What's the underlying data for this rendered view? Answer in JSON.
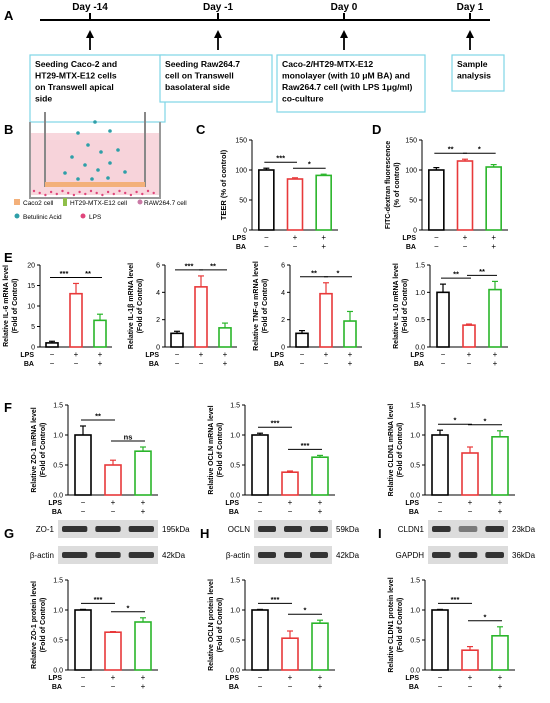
{
  "panel_letters": [
    "A",
    "B",
    "C",
    "D",
    "E",
    "F",
    "G",
    "H",
    "I"
  ],
  "timeline": {
    "days": [
      "Day -14",
      "Day -1",
      "Day 0",
      "Day 1"
    ],
    "boxes": [
      [
        "Seeding Caco-2 and",
        "HT29-MTX-E12 cells",
        "on Transwell apical",
        "side"
      ],
      [
        "Seeding Raw264.7",
        "cell on Transwell",
        "basolateral side"
      ],
      [
        "Caco-2/HT29-MTX-E12",
        "monolayer (with 10 μM BA) and",
        "Raw264.7 cell (with LPS 1μg/ml)",
        "co-culture"
      ],
      [
        "Sample",
        "analysis"
      ]
    ]
  },
  "schematic_legend": {
    "caco2": "Caco2 cell",
    "ht29": "HT29-MTX-E12 cell",
    "raw": "RAW264.7 cell",
    "ba": "Betulinic Acid",
    "lps": "LPS"
  },
  "treatment_rows": {
    "lps_label": "LPS",
    "ba_label": "BA",
    "lps": [
      "−",
      "+",
      "+"
    ],
    "ba": [
      "−",
      "−",
      "+"
    ]
  },
  "colors": {
    "control": "#000000",
    "lps": "#e8393a",
    "ba": "#2ab52a",
    "timeline_box": "#7fd6e6",
    "schematic_pink": "#f5c6cf",
    "dots_teal": "#2e9fa8",
    "dots_pink": "#e0457b"
  },
  "blots": {
    "G": {
      "bands": [
        {
          "name": "ZO-1",
          "size": "195kDa"
        },
        {
          "name": "β-actin",
          "size": "42kDa"
        }
      ]
    },
    "H": {
      "bands": [
        {
          "name": "OCLN",
          "size": "59kDa"
        },
        {
          "name": "β-actin",
          "size": "42kDa"
        }
      ]
    },
    "I": {
      "bands": [
        {
          "name": "CLDN1",
          "size": "23kDa"
        },
        {
          "name": "GAPDH",
          "size": "36kDa"
        }
      ]
    }
  },
  "chart_data": [
    {
      "id": "C",
      "type": "bar",
      "ylabel": "TEER (% of control)",
      "ylim": [
        0,
        150
      ],
      "yticks": [
        0,
        50,
        100,
        150
      ],
      "values": [
        100,
        85,
        91
      ],
      "errors": [
        3,
        2,
        2
      ],
      "sig": [
        {
          "from": 0,
          "to": 1,
          "label": "***"
        },
        {
          "from": 1,
          "to": 2,
          "label": "*"
        }
      ]
    },
    {
      "id": "D",
      "type": "bar",
      "ylabel": "FITC-dextran fluorescence (% of control)",
      "ylim": [
        0,
        150
      ],
      "yticks": [
        0,
        50,
        100,
        150
      ],
      "values": [
        100,
        115,
        105
      ],
      "errors": [
        4,
        3,
        4
      ],
      "sig": [
        {
          "from": 0,
          "to": 1,
          "label": "**"
        },
        {
          "from": 1,
          "to": 2,
          "label": "*"
        }
      ]
    },
    {
      "id": "E1",
      "type": "bar",
      "ylabel": "Relative IL-6 mRNA level (Fold of Control)",
      "ylim": [
        0,
        20
      ],
      "yticks": [
        0,
        5,
        10,
        15,
        20
      ],
      "values": [
        1,
        13,
        6.5
      ],
      "errors": [
        0.4,
        2.5,
        1.5
      ],
      "sig": [
        {
          "from": 0,
          "to": 1,
          "label": "***"
        },
        {
          "from": 1,
          "to": 2,
          "label": "**"
        }
      ]
    },
    {
      "id": "E2",
      "type": "bar",
      "ylabel": "Relative IL-1β mRNA level (Fold of Control)",
      "ylim": [
        0,
        6
      ],
      "yticks": [
        0,
        2,
        4,
        6
      ],
      "values": [
        1,
        4.4,
        1.4
      ],
      "errors": [
        0.15,
        0.8,
        0.35
      ],
      "sig": [
        {
          "from": 0,
          "to": 1,
          "label": "***"
        },
        {
          "from": 1,
          "to": 2,
          "label": "**"
        }
      ]
    },
    {
      "id": "E3",
      "type": "bar",
      "ylabel": "Relative TNF-α mRNA level (Fold of Control)",
      "ylim": [
        0,
        6
      ],
      "yticks": [
        0,
        2,
        4,
        6
      ],
      "values": [
        1,
        3.9,
        1.9
      ],
      "errors": [
        0.2,
        0.8,
        0.7
      ],
      "sig": [
        {
          "from": 0,
          "to": 1,
          "label": "**"
        },
        {
          "from": 1,
          "to": 2,
          "label": "*"
        }
      ]
    },
    {
      "id": "E4",
      "type": "bar",
      "ylabel": "Relative IL-10 mRNA level (Fold of Control)",
      "ylim": [
        0,
        1.5
      ],
      "yticks": [
        0.0,
        0.5,
        1.0,
        1.5
      ],
      "values": [
        1,
        0.4,
        1.05
      ],
      "errors": [
        0.15,
        0.02,
        0.15
      ],
      "sig": [
        {
          "from": 0,
          "to": 1,
          "label": "**"
        },
        {
          "from": 1,
          "to": 2,
          "label": "**"
        }
      ]
    },
    {
      "id": "F1",
      "type": "bar",
      "ylabel": "Relative ZO-1 mRNA level (Fold of Control)",
      "ylim": [
        0,
        1.5
      ],
      "yticks": [
        0.0,
        0.5,
        1.0,
        1.5
      ],
      "values": [
        1,
        0.5,
        0.73
      ],
      "errors": [
        0.15,
        0.08,
        0.07
      ],
      "sig": [
        {
          "from": 0,
          "to": 1,
          "label": "**"
        },
        {
          "from": 1,
          "to": 2,
          "label": "ns"
        }
      ]
    },
    {
      "id": "F2",
      "type": "bar",
      "ylabel": "Relative OCLN mRNA level (Fold of Control)",
      "ylim": [
        0,
        1.5
      ],
      "yticks": [
        0.0,
        0.5,
        1.0,
        1.5
      ],
      "values": [
        1,
        0.38,
        0.63
      ],
      "errors": [
        0.03,
        0.02,
        0.03
      ],
      "sig": [
        {
          "from": 0,
          "to": 1,
          "label": "***"
        },
        {
          "from": 1,
          "to": 2,
          "label": "***"
        }
      ]
    },
    {
      "id": "F3",
      "type": "bar",
      "ylabel": "Relative CLDN1 mRNA level (Fold of Control)",
      "ylim": [
        0,
        1.5
      ],
      "yticks": [
        0.0,
        0.5,
        1.0,
        1.5
      ],
      "values": [
        1,
        0.7,
        0.97
      ],
      "errors": [
        0.08,
        0.1,
        0.1
      ],
      "sig": [
        {
          "from": 0,
          "to": 1,
          "label": "*"
        },
        {
          "from": 1,
          "to": 2,
          "label": "*"
        }
      ]
    },
    {
      "id": "G",
      "type": "bar",
      "ylabel": "Relative ZO-1 protein level (Fold of Control)",
      "ylim": [
        0,
        1.5
      ],
      "yticks": [
        0.0,
        0.5,
        1.0,
        1.5
      ],
      "values": [
        1,
        0.63,
        0.8
      ],
      "errors": [
        0.01,
        0.01,
        0.07
      ],
      "sig": [
        {
          "from": 0,
          "to": 1,
          "label": "***"
        },
        {
          "from": 1,
          "to": 2,
          "label": "*"
        }
      ]
    },
    {
      "id": "H",
      "type": "bar",
      "ylabel": "Relative OCLN protein level (Fold of Control)",
      "ylim": [
        0,
        1.5
      ],
      "yticks": [
        0.0,
        0.5,
        1.0,
        1.5
      ],
      "values": [
        1,
        0.53,
        0.78
      ],
      "errors": [
        0.01,
        0.12,
        0.05
      ],
      "sig": [
        {
          "from": 0,
          "to": 1,
          "label": "***"
        },
        {
          "from": 1,
          "to": 2,
          "label": "*"
        }
      ]
    },
    {
      "id": "I",
      "type": "bar",
      "ylabel": "Relative CLDN1 protein level (Fold of Control)",
      "ylim": [
        0,
        1.5
      ],
      "yticks": [
        0.0,
        0.5,
        1.0,
        1.5
      ],
      "values": [
        1,
        0.33,
        0.57
      ],
      "errors": [
        0.01,
        0.06,
        0.15
      ],
      "sig": [
        {
          "from": 0,
          "to": 1,
          "label": "***"
        },
        {
          "from": 1,
          "to": 2,
          "label": "*"
        }
      ]
    }
  ]
}
